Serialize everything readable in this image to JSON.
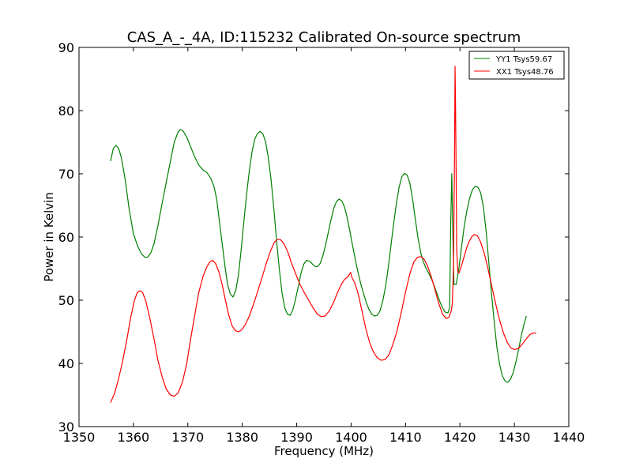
{
  "chart_data": {
    "type": "line",
    "title": "CAS_A_-_4A, ID:115232 Calibrated On-source spectrum",
    "xlabel": "Frequency (MHz)",
    "ylabel": "Power in Kelvin",
    "xlim": [
      1350,
      1440
    ],
    "ylim": [
      30,
      90
    ],
    "xticks": [
      "1350",
      "1360",
      "1370",
      "1380",
      "1390",
      "1400",
      "1410",
      "1420",
      "1430",
      "1440"
    ],
    "yticks": [
      "30",
      "40",
      "50",
      "60",
      "70",
      "80",
      "90"
    ],
    "grid": false,
    "legend_position": "top-right",
    "series": [
      {
        "name": "YY1 Tsys59.67",
        "color": "#008000",
        "points": [
          [
            1355.8,
            72.0
          ],
          [
            1356.3,
            74.0
          ],
          [
            1356.8,
            74.5
          ],
          [
            1357.3,
            74.0
          ],
          [
            1357.8,
            72.5
          ],
          [
            1358.5,
            69.0
          ],
          [
            1359.2,
            64.5
          ],
          [
            1360.0,
            60.5
          ],
          [
            1360.8,
            58.5
          ],
          [
            1361.5,
            57.3
          ],
          [
            1362.1,
            56.8
          ],
          [
            1362.6,
            56.8
          ],
          [
            1363.2,
            57.5
          ],
          [
            1363.8,
            59.0
          ],
          [
            1364.5,
            61.8
          ],
          [
            1365.2,
            65.0
          ],
          [
            1366.0,
            68.5
          ],
          [
            1366.8,
            72.0
          ],
          [
            1367.5,
            75.0
          ],
          [
            1368.2,
            76.6
          ],
          [
            1368.6,
            77.0
          ],
          [
            1369.1,
            76.8
          ],
          [
            1369.8,
            75.8
          ],
          [
            1370.5,
            74.3
          ],
          [
            1371.2,
            72.8
          ],
          [
            1372.0,
            71.4
          ],
          [
            1372.8,
            70.6
          ],
          [
            1373.5,
            70.2
          ],
          [
            1374.2,
            69.3
          ],
          [
            1374.8,
            68.0
          ],
          [
            1375.3,
            66.0
          ],
          [
            1375.8,
            62.5
          ],
          [
            1376.3,
            59.0
          ],
          [
            1376.8,
            55.5
          ],
          [
            1377.3,
            52.5
          ],
          [
            1377.8,
            51.0
          ],
          [
            1378.3,
            50.5
          ],
          [
            1378.8,
            51.5
          ],
          [
            1379.3,
            54.0
          ],
          [
            1379.8,
            58.0
          ],
          [
            1380.3,
            62.5
          ],
          [
            1380.8,
            66.8
          ],
          [
            1381.3,
            70.5
          ],
          [
            1381.8,
            73.5
          ],
          [
            1382.3,
            75.5
          ],
          [
            1382.8,
            76.4
          ],
          [
            1383.3,
            76.7
          ],
          [
            1383.8,
            76.3
          ],
          [
            1384.3,
            75.0
          ],
          [
            1384.8,
            72.5
          ],
          [
            1385.3,
            69.0
          ],
          [
            1385.8,
            64.5
          ],
          [
            1386.3,
            59.5
          ],
          [
            1386.8,
            55.0
          ],
          [
            1387.3,
            51.2
          ],
          [
            1387.8,
            48.8
          ],
          [
            1388.3,
            47.8
          ],
          [
            1388.8,
            47.6
          ],
          [
            1389.3,
            48.5
          ],
          [
            1389.8,
            50.2
          ],
          [
            1390.3,
            52.2
          ],
          [
            1390.8,
            54.3
          ],
          [
            1391.3,
            55.7
          ],
          [
            1391.8,
            56.3
          ],
          [
            1392.3,
            56.2
          ],
          [
            1392.8,
            55.8
          ],
          [
            1393.3,
            55.4
          ],
          [
            1393.8,
            55.3
          ],
          [
            1394.3,
            55.8
          ],
          [
            1394.8,
            57.0
          ],
          [
            1395.3,
            58.7
          ],
          [
            1395.8,
            60.7
          ],
          [
            1396.3,
            62.7
          ],
          [
            1396.8,
            64.5
          ],
          [
            1397.3,
            65.6
          ],
          [
            1397.8,
            66.0
          ],
          [
            1398.3,
            65.7
          ],
          [
            1398.8,
            64.7
          ],
          [
            1399.3,
            63.0
          ],
          [
            1399.8,
            60.8
          ],
          [
            1400.3,
            58.5
          ],
          [
            1400.8,
            56.3
          ],
          [
            1401.3,
            54.3
          ],
          [
            1401.8,
            52.5
          ],
          [
            1402.3,
            51.0
          ],
          [
            1402.8,
            49.6
          ],
          [
            1403.3,
            48.5
          ],
          [
            1403.8,
            47.8
          ],
          [
            1404.3,
            47.5
          ],
          [
            1404.8,
            47.6
          ],
          [
            1405.3,
            48.3
          ],
          [
            1405.8,
            49.8
          ],
          [
            1406.3,
            52.0
          ],
          [
            1406.8,
            55.0
          ],
          [
            1407.3,
            58.5
          ],
          [
            1407.8,
            62.0
          ],
          [
            1408.3,
            65.2
          ],
          [
            1408.8,
            67.8
          ],
          [
            1409.3,
            69.5
          ],
          [
            1409.8,
            70.1
          ],
          [
            1410.3,
            69.8
          ],
          [
            1410.8,
            68.5
          ],
          [
            1411.3,
            66.0
          ],
          [
            1411.8,
            62.8
          ],
          [
            1412.3,
            59.8
          ],
          [
            1412.8,
            57.5
          ],
          [
            1413.3,
            56.0
          ],
          [
            1413.8,
            55.0
          ],
          [
            1414.3,
            54.2
          ],
          [
            1414.8,
            53.3
          ],
          [
            1415.3,
            52.2
          ],
          [
            1415.8,
            51.0
          ],
          [
            1416.3,
            49.8
          ],
          [
            1416.8,
            48.8
          ],
          [
            1417.3,
            48.1
          ],
          [
            1417.8,
            48.0
          ],
          [
            1418.1,
            48.8
          ],
          [
            1418.3,
            62.0
          ],
          [
            1418.5,
            70.0
          ],
          [
            1418.7,
            60.0
          ],
          [
            1418.9,
            52.5
          ],
          [
            1419.3,
            52.5
          ],
          [
            1419.8,
            55.0
          ],
          [
            1420.3,
            58.5
          ],
          [
            1420.8,
            61.8
          ],
          [
            1421.3,
            64.3
          ],
          [
            1421.8,
            66.2
          ],
          [
            1422.3,
            67.5
          ],
          [
            1422.8,
            68.0
          ],
          [
            1423.3,
            67.9
          ],
          [
            1423.8,
            67.0
          ],
          [
            1424.3,
            64.8
          ],
          [
            1424.8,
            61.0
          ],
          [
            1425.3,
            56.0
          ],
          [
            1425.8,
            51.0
          ],
          [
            1426.3,
            46.5
          ],
          [
            1426.8,
            42.5
          ],
          [
            1427.3,
            39.8
          ],
          [
            1427.8,
            38.0
          ],
          [
            1428.3,
            37.2
          ],
          [
            1428.8,
            37.0
          ],
          [
            1429.3,
            37.5
          ],
          [
            1429.8,
            38.6
          ],
          [
            1430.3,
            40.3
          ],
          [
            1430.8,
            42.3
          ],
          [
            1431.3,
            44.5
          ],
          [
            1431.8,
            46.3
          ],
          [
            1432.2,
            47.5
          ]
        ]
      },
      {
        "name": "XX1 Tsys48.76",
        "color": "#ff0000",
        "points": [
          [
            1355.8,
            33.8
          ],
          [
            1356.5,
            35.2
          ],
          [
            1357.2,
            37.3
          ],
          [
            1358.0,
            40.3
          ],
          [
            1358.8,
            43.8
          ],
          [
            1359.5,
            47.3
          ],
          [
            1360.2,
            50.0
          ],
          [
            1360.7,
            51.2
          ],
          [
            1361.2,
            51.5
          ],
          [
            1361.7,
            51.2
          ],
          [
            1362.3,
            49.8
          ],
          [
            1363.0,
            47.2
          ],
          [
            1363.8,
            43.8
          ],
          [
            1364.5,
            40.5
          ],
          [
            1365.3,
            37.8
          ],
          [
            1366.0,
            36.0
          ],
          [
            1366.8,
            35.0
          ],
          [
            1367.5,
            34.8
          ],
          [
            1368.2,
            35.3
          ],
          [
            1369.0,
            37.0
          ],
          [
            1369.8,
            40.0
          ],
          [
            1370.5,
            43.8
          ],
          [
            1371.3,
            47.8
          ],
          [
            1372.0,
            51.2
          ],
          [
            1372.8,
            53.8
          ],
          [
            1373.5,
            55.3
          ],
          [
            1374.1,
            56.1
          ],
          [
            1374.6,
            56.3
          ],
          [
            1375.1,
            55.8
          ],
          [
            1375.7,
            54.5
          ],
          [
            1376.3,
            52.5
          ],
          [
            1376.9,
            50.0
          ],
          [
            1377.5,
            47.7
          ],
          [
            1378.1,
            46.0
          ],
          [
            1378.7,
            45.2
          ],
          [
            1379.3,
            45.0
          ],
          [
            1379.9,
            45.3
          ],
          [
            1380.6,
            46.2
          ],
          [
            1381.3,
            47.5
          ],
          [
            1382.0,
            49.2
          ],
          [
            1382.8,
            51.3
          ],
          [
            1383.6,
            53.5
          ],
          [
            1384.4,
            55.8
          ],
          [
            1385.2,
            57.8
          ],
          [
            1385.9,
            59.2
          ],
          [
            1386.5,
            59.6
          ],
          [
            1387.0,
            59.6
          ],
          [
            1387.6,
            59.0
          ],
          [
            1388.3,
            57.8
          ],
          [
            1389.0,
            56.0
          ],
          [
            1389.8,
            54.2
          ],
          [
            1390.6,
            52.5
          ],
          [
            1391.4,
            51.2
          ],
          [
            1392.2,
            50.0
          ],
          [
            1393.0,
            48.8
          ],
          [
            1393.8,
            47.8
          ],
          [
            1394.5,
            47.4
          ],
          [
            1395.2,
            47.5
          ],
          [
            1396.0,
            48.3
          ],
          [
            1396.8,
            49.7
          ],
          [
            1397.5,
            51.2
          ],
          [
            1398.2,
            52.5
          ],
          [
            1398.8,
            53.3
          ],
          [
            1399.4,
            53.7
          ],
          [
            1399.9,
            54.4
          ],
          [
            1400.2,
            53.5
          ],
          [
            1400.7,
            52.7
          ],
          [
            1401.3,
            51.0
          ],
          [
            1402.0,
            48.3
          ],
          [
            1402.7,
            45.5
          ],
          [
            1403.4,
            43.3
          ],
          [
            1404.1,
            41.8
          ],
          [
            1404.8,
            40.9
          ],
          [
            1405.5,
            40.5
          ],
          [
            1406.2,
            40.6
          ],
          [
            1406.9,
            41.3
          ],
          [
            1407.6,
            42.8
          ],
          [
            1408.4,
            45.0
          ],
          [
            1409.2,
            48.0
          ],
          [
            1410.0,
            51.3
          ],
          [
            1410.8,
            54.2
          ],
          [
            1411.5,
            56.0
          ],
          [
            1412.2,
            56.8
          ],
          [
            1412.8,
            56.9
          ],
          [
            1413.4,
            56.5
          ],
          [
            1414.0,
            55.5
          ],
          [
            1414.7,
            53.8
          ],
          [
            1415.4,
            51.7
          ],
          [
            1416.1,
            49.5
          ],
          [
            1416.8,
            47.8
          ],
          [
            1417.5,
            47.1
          ],
          [
            1418.0,
            47.3
          ],
          [
            1418.4,
            48.3
          ],
          [
            1418.6,
            49.5
          ],
          [
            1418.8,
            55.0
          ],
          [
            1419.0,
            72.0
          ],
          [
            1419.1,
            87.0
          ],
          [
            1419.2,
            80.0
          ],
          [
            1419.3,
            70.0
          ],
          [
            1419.4,
            58.0
          ],
          [
            1419.6,
            54.5
          ],
          [
            1419.8,
            54.3
          ],
          [
            1420.2,
            55.2
          ],
          [
            1420.7,
            56.7
          ],
          [
            1421.2,
            58.2
          ],
          [
            1421.7,
            59.3
          ],
          [
            1422.2,
            60.1
          ],
          [
            1422.7,
            60.4
          ],
          [
            1423.2,
            60.2
          ],
          [
            1423.8,
            59.2
          ],
          [
            1424.5,
            57.3
          ],
          [
            1425.2,
            54.8
          ],
          [
            1425.9,
            52.0
          ],
          [
            1426.6,
            49.3
          ],
          [
            1427.3,
            46.8
          ],
          [
            1428.0,
            44.8
          ],
          [
            1428.7,
            43.3
          ],
          [
            1429.4,
            42.4
          ],
          [
            1430.1,
            42.2
          ],
          [
            1430.8,
            42.4
          ],
          [
            1431.5,
            43.1
          ],
          [
            1432.2,
            43.9
          ],
          [
            1432.9,
            44.6
          ],
          [
            1433.5,
            44.8
          ],
          [
            1434.0,
            44.8
          ]
        ]
      }
    ]
  }
}
